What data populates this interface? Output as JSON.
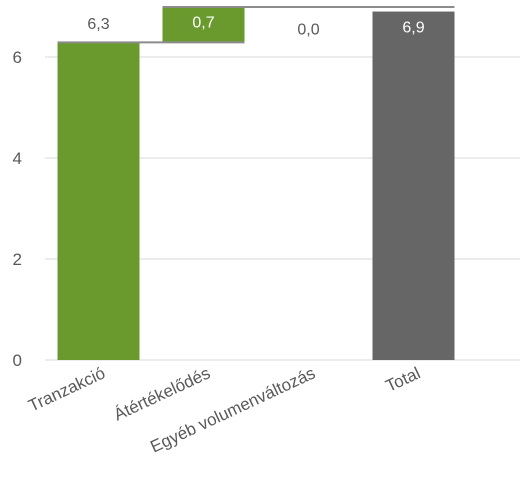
{
  "chart_data": {
    "type": "bar",
    "subtype": "waterfall",
    "title": "",
    "xlabel": "",
    "ylabel": "",
    "ylim": [
      0,
      7
    ],
    "yticks": [
      "0",
      "2",
      "4",
      "6"
    ],
    "ytick_values": [
      0,
      2,
      4,
      6
    ],
    "grid": true,
    "categories": [
      "Tranzakció",
      "Átértékelődés",
      "Egyéb volumenváltozás",
      "Total"
    ],
    "values": [
      6.3,
      0.7,
      0.0,
      6.9
    ],
    "value_labels": [
      "6,3",
      "0,7",
      "0,0",
      "6,9"
    ],
    "bar_kind": [
      "increase",
      "increase",
      "increase",
      "total"
    ],
    "colors": {
      "increase": "#6a9a2e",
      "total": "#666666",
      "connector": "#8c8c8c",
      "grid": "#d9d9d9",
      "label_dark": "#595959",
      "label_light": "#ffffff"
    }
  }
}
